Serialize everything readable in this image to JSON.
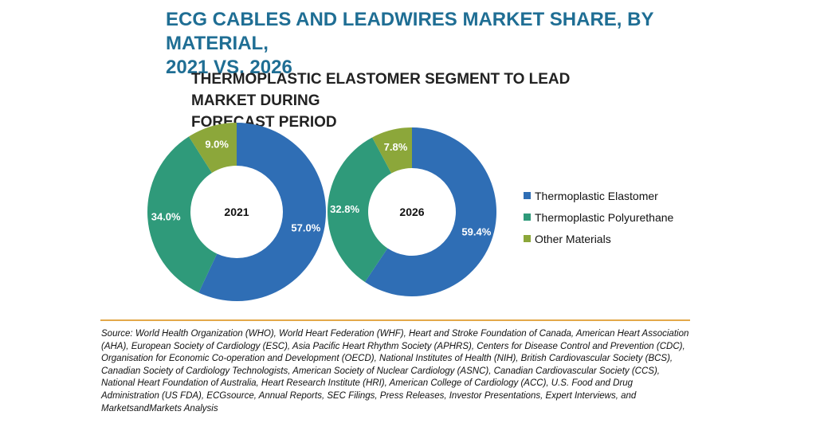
{
  "title_line1": "ECG CABLES AND LEADWIRES MARKET SHARE, BY MATERIAL,",
  "title_line2": "2021 VS. 2026",
  "subtitle_line1": "THERMOPLASTIC ELASTOMER SEGMENT TO LEAD MARKET DURING",
  "subtitle_line2": "FORECAST PERIOD",
  "source_text": "Source: World Health Organization (WHO), World Heart Federation (WHF), Heart and Stroke Foundation of Canada, American Heart Association (AHA), European Society of Cardiology (ESC), Asia Pacific Heart Rhythm Society (APHRS), Centers for Disease Control and Prevention (CDC), Organisation for Economic Co-operation and Development (OECD), National Institutes of Health (NIH), British Cardiovascular Society (BCS), Canadian Society of Cardiology Technologists, American Society of Nuclear Cardiology (ASNC), Canadian Cardiovascular Society (CCS), National Heart Foundation of Australia, Heart Research Institute (HRI), American College of Cardiology (ACC), U.S. Food and Drug Administration (US FDA), ECGsource, Annual Reports, SEC Filings, Press Releases, Investor Presentations, Expert Interviews, and MarketsandMarkets Analysis",
  "colors": {
    "Thermoplastic Elastomer": "#2f6eb5",
    "Thermoplastic Polyurethane": "#2f9a7a",
    "Other Materials": "#8ca73a"
  },
  "chart_data": [
    {
      "type": "pie",
      "center_label": "2021",
      "legend": [
        "Thermoplastic Elastomer",
        "Thermoplastic Polyurethane",
        "Other Materials"
      ],
      "legend_position": "right",
      "slices": [
        {
          "name": "Thermoplastic Elastomer",
          "value": 57.0,
          "label": "57.0%"
        },
        {
          "name": "Thermoplastic Polyurethane",
          "value": 34.0,
          "label": "34.0%"
        },
        {
          "name": "Other Materials",
          "value": 9.0,
          "label": "9.0%"
        }
      ]
    },
    {
      "type": "pie",
      "center_label": "2026",
      "legend": [
        "Thermoplastic Elastomer",
        "Thermoplastic Polyurethane",
        "Other Materials"
      ],
      "legend_position": "right",
      "slices": [
        {
          "name": "Thermoplastic Elastomer",
          "value": 59.4,
          "label": "59.4%"
        },
        {
          "name": "Thermoplastic Polyurethane",
          "value": 32.8,
          "label": "32.8%"
        },
        {
          "name": "Other Materials",
          "value": 7.8,
          "label": "7.8%"
        }
      ]
    }
  ]
}
